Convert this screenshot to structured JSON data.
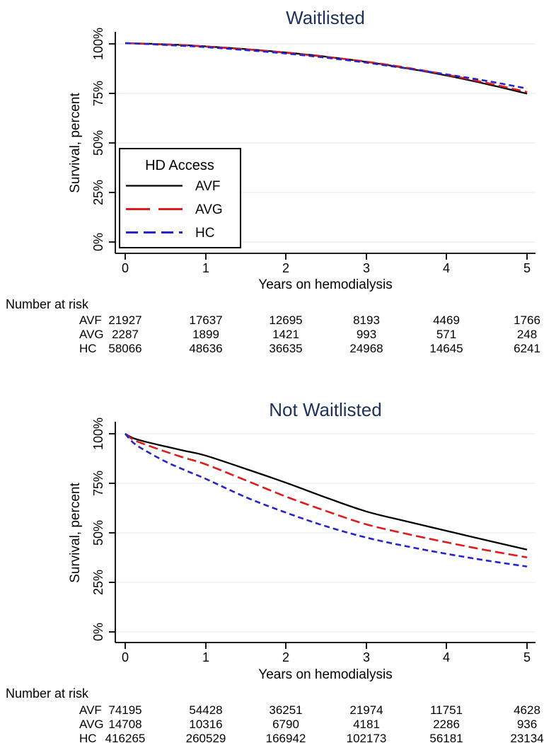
{
  "figure": {
    "background": "#ffffff",
    "title_color": "#1e3156",
    "grid_color": "#e4eef5",
    "axis_color": "#000000"
  },
  "chart_data": [
    {
      "type": "line",
      "title": "Waitlisted",
      "xlabel": "Years on hemodialysis",
      "ylabel": "Survival, percent",
      "xlim": [
        0,
        5
      ],
      "ylim": [
        0,
        100
      ],
      "grid": true,
      "x_ticks": [
        "0",
        "1",
        "2",
        "3",
        "4",
        "5"
      ],
      "y_ticks": [
        "100%",
        "75%",
        "50%",
        "25%",
        "0%"
      ],
      "legend": {
        "title": "HD Access",
        "position": "lower-left",
        "entries": [
          {
            "label": "AVF",
            "color": "#000000",
            "dash": "solid"
          },
          {
            "label": "AVG",
            "color": "#dd1c1c",
            "dash": "long-dash"
          },
          {
            "label": "HC",
            "color": "#2525cc",
            "dash": "dash"
          }
        ]
      },
      "series": [
        {
          "name": "AVF",
          "color": "#000000",
          "dash": "solid",
          "width": 2.3,
          "x": [
            0,
            0.25,
            0.5,
            0.75,
            1,
            1.5,
            2,
            2.5,
            3,
            3.5,
            4,
            4.5,
            5
          ],
          "y": [
            100,
            99.8,
            99.4,
            99.0,
            98.4,
            97.0,
            95.3,
            93.2,
            90.6,
            87.4,
            83.7,
            79.4,
            74.6
          ]
        },
        {
          "name": "AVG",
          "color": "#dd1c1c",
          "dash": "long-dash",
          "width": 2.6,
          "x": [
            0,
            0.25,
            0.5,
            0.75,
            1,
            1.5,
            2,
            2.5,
            3,
            3.5,
            4,
            4.5,
            5
          ],
          "y": [
            100,
            99.7,
            99.3,
            98.9,
            98.3,
            96.9,
            95.2,
            93.1,
            90.7,
            87.7,
            84.1,
            80.0,
            75.4
          ]
        },
        {
          "name": "HC",
          "color": "#2525cc",
          "dash": "dash",
          "width": 2.6,
          "x": [
            0,
            0.25,
            0.5,
            0.75,
            1,
            1.5,
            2,
            2.5,
            3,
            3.5,
            4,
            4.5,
            5
          ],
          "y": [
            100,
            99.6,
            99.1,
            98.6,
            98.0,
            96.5,
            94.8,
            92.7,
            90.2,
            87.3,
            84.3,
            81.0,
            77.2
          ]
        }
      ],
      "risk_table": {
        "heading": "Number at risk",
        "rows": [
          {
            "label": "AVF",
            "values": [
              "21927",
              "17637",
              "12695",
              "8193",
              "4469",
              "1766"
            ]
          },
          {
            "label": "AVG",
            "values": [
              "2287",
              "1899",
              "1421",
              "993",
              "571",
              "248"
            ]
          },
          {
            "label": "HC",
            "values": [
              "58066",
              "48636",
              "36635",
              "24968",
              "14645",
              "6241"
            ]
          }
        ]
      }
    },
    {
      "type": "line",
      "title": "Not Waitlisted",
      "xlabel": "Years on hemodialysis",
      "ylabel": "Survival, percent",
      "xlim": [
        0,
        5
      ],
      "ylim": [
        0,
        100
      ],
      "grid": true,
      "x_ticks": [
        "0",
        "1",
        "2",
        "3",
        "4",
        "5"
      ],
      "y_ticks": [
        "100%",
        "75%",
        "50%",
        "25%",
        "0%"
      ],
      "series": [
        {
          "name": "AVF",
          "color": "#000000",
          "dash": "solid",
          "width": 2.3,
          "x": [
            0,
            0.1,
            0.25,
            0.5,
            0.75,
            1,
            1.5,
            2,
            2.5,
            3,
            3.5,
            4,
            4.5,
            5
          ],
          "y": [
            100,
            97.8,
            96.0,
            93.6,
            91.3,
            89.0,
            82.3,
            75.3,
            67.8,
            60.8,
            55.8,
            51.0,
            46.2,
            41.5
          ]
        },
        {
          "name": "AVG",
          "color": "#dd1c1c",
          "dash": "long-dash",
          "width": 2.6,
          "x": [
            0,
            0.1,
            0.25,
            0.5,
            0.75,
            1,
            1.5,
            2,
            2.5,
            3,
            3.5,
            4,
            4.5,
            5
          ],
          "y": [
            100,
            97.0,
            94.6,
            91.0,
            87.7,
            84.6,
            76.5,
            68.3,
            61.0,
            54.3,
            49.5,
            45.2,
            41.2,
            37.6
          ]
        },
        {
          "name": "HC",
          "color": "#2525cc",
          "dash": "dash",
          "width": 2.6,
          "x": [
            0,
            0.1,
            0.25,
            0.5,
            0.75,
            1,
            1.5,
            2,
            2.5,
            3,
            3.5,
            4,
            4.5,
            5
          ],
          "y": [
            100,
            95.5,
            91.5,
            86.0,
            81.5,
            77.3,
            68.0,
            60.2,
            53.3,
            47.6,
            43.2,
            39.4,
            36.0,
            33.0
          ]
        }
      ],
      "risk_table": {
        "heading": "Number at risk",
        "rows": [
          {
            "label": "AVF",
            "values": [
              "74195",
              "54428",
              "36251",
              "21974",
              "11751",
              "4628"
            ]
          },
          {
            "label": "AVG",
            "values": [
              "14708",
              "10316",
              "6790",
              "4181",
              "2286",
              "936"
            ]
          },
          {
            "label": "HC",
            "values": [
              "416265",
              "260529",
              "166942",
              "102173",
              "56181",
              "23134"
            ]
          }
        ]
      }
    }
  ]
}
